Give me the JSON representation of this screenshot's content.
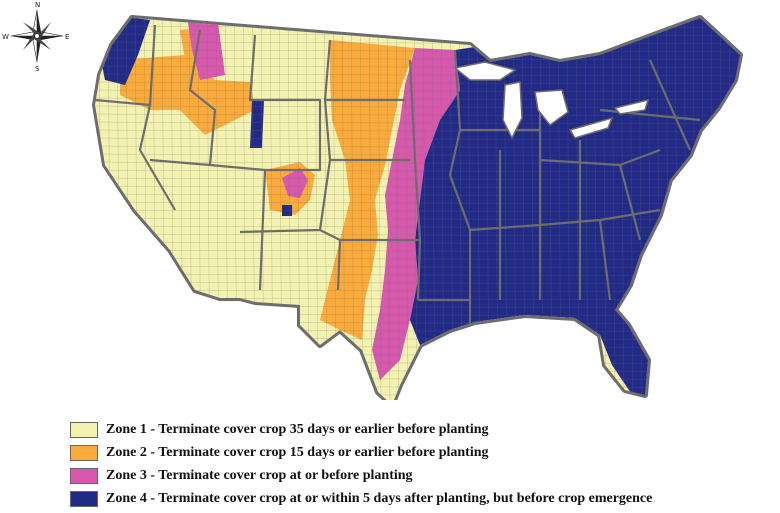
{
  "map": {
    "colors": {
      "zone1": "#f4f2b0",
      "zone2": "#fbab3c",
      "zone3": "#d659ae",
      "zone4": "#222a87",
      "outline": "#6d6d6d"
    },
    "compass": {
      "n": "N",
      "s": "S",
      "e": "E",
      "w": "W"
    }
  },
  "legend": {
    "items": [
      {
        "zone": "zone1",
        "color": "#f4f2b0",
        "label": "Zone 1 - Terminate cover crop 35 days or earlier before planting"
      },
      {
        "zone": "zone2",
        "color": "#fbab3c",
        "label": "Zone 2 - Terminate cover crop 15 days or earlier before planting"
      },
      {
        "zone": "zone3",
        "color": "#d659ae",
        "label": "Zone 3 - Terminate cover crop at or before planting"
      },
      {
        "zone": "zone4",
        "color": "#222a87",
        "label": "Zone 4 - Terminate cover crop at or within 5 days after planting, but before crop emergence"
      }
    ]
  }
}
